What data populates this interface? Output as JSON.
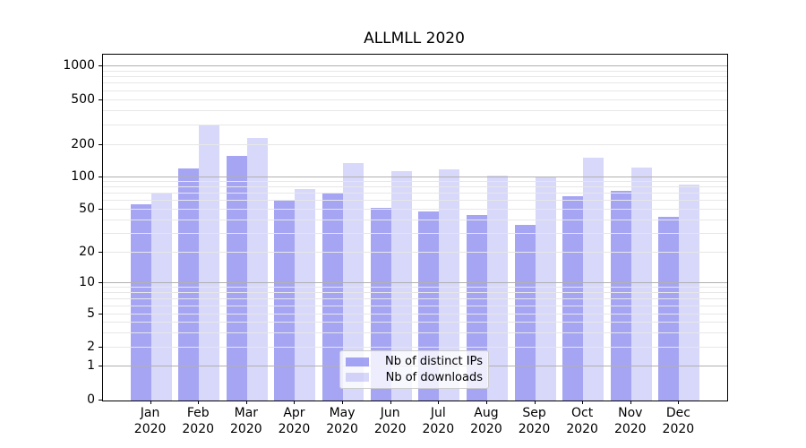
{
  "chart_data": {
    "type": "bar",
    "title": "ALLMLL 2020",
    "categories": [
      "Jan",
      "Feb",
      "Mar",
      "Apr",
      "May",
      "Jun",
      "Jul",
      "Aug",
      "Sep",
      "Oct",
      "Nov",
      "Dec"
    ],
    "category_year": "2020",
    "series": [
      {
        "name": "Nb of distinct IPs",
        "alpha": 0.7,
        "values": [
          56,
          120,
          160,
          60,
          70,
          52,
          48,
          45,
          36,
          66,
          75,
          43
        ]
      },
      {
        "name": "Nb of downloads",
        "alpha": 0.3,
        "values": [
          70,
          300,
          230,
          78,
          136,
          114,
          118,
          104,
          100,
          152,
          124,
          85
        ]
      }
    ],
    "bar_color_base": "#7f7ff0",
    "yscale": "symlog",
    "yticks": [
      0,
      1,
      2,
      5,
      10,
      20,
      50,
      100,
      200,
      500,
      1000
    ],
    "ylim": [
      0,
      1300
    ],
    "grid": "both",
    "legend_position": "lower-center"
  }
}
